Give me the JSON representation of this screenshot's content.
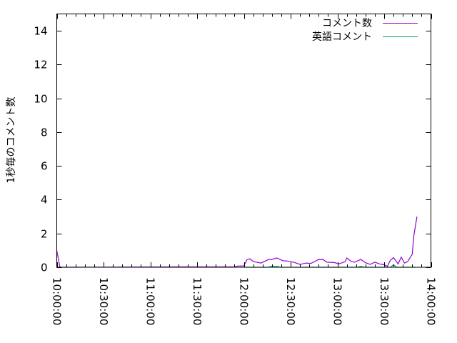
{
  "chart_data": {
    "type": "line",
    "title": "",
    "xlabel": "",
    "ylabel": "1秒毎のコメント数",
    "xlim": [
      "10:00:00",
      "14:00:00"
    ],
    "ylim": [
      0,
      15
    ],
    "x_ticks": [
      "10:00:00",
      "10:30:00",
      "11:00:00",
      "11:30:00",
      "12:00:00",
      "12:30:00",
      "13:00:00",
      "13:30:00",
      "14:00:00"
    ],
    "y_ticks": [
      "0",
      "2",
      "4",
      "6",
      "8",
      "10",
      "12",
      "14"
    ],
    "grid": false,
    "legend_position": "top-right",
    "series": [
      {
        "name": "コメント数",
        "color": "#9400d3",
        "points": [
          [
            "10:00",
            1.0
          ],
          [
            "10:02",
            0.0
          ],
          [
            "11:54",
            0.03
          ],
          [
            "11:56",
            0.07
          ],
          [
            "12:00",
            0.08
          ],
          [
            "12:02",
            0.45
          ],
          [
            "12:04",
            0.5
          ],
          [
            "12:06",
            0.34
          ],
          [
            "12:11",
            0.25
          ],
          [
            "12:16",
            0.46
          ],
          [
            "12:18",
            0.46
          ],
          [
            "12:21",
            0.55
          ],
          [
            "12:22",
            0.52
          ],
          [
            "12:25",
            0.39
          ],
          [
            "12:28",
            0.37
          ],
          [
            "12:32",
            0.3
          ],
          [
            "12:36",
            0.17
          ],
          [
            "12:40",
            0.25
          ],
          [
            "12:43",
            0.23
          ],
          [
            "12:48",
            0.46
          ],
          [
            "12:51",
            0.45
          ],
          [
            "12:53",
            0.3
          ],
          [
            "12:58",
            0.28
          ],
          [
            "13:01",
            0.2
          ],
          [
            "13:05",
            0.33
          ],
          [
            "13:06",
            0.55
          ],
          [
            "13:09",
            0.34
          ],
          [
            "13:11",
            0.3
          ],
          [
            "13:15",
            0.46
          ],
          [
            "13:18",
            0.27
          ],
          [
            "13:21",
            0.17
          ],
          [
            "13:24",
            0.3
          ],
          [
            "13:27",
            0.2
          ],
          [
            "13:30",
            0.15
          ],
          [
            "13:32",
            0.05
          ],
          [
            "13:34",
            0.42
          ],
          [
            "13:36",
            0.57
          ],
          [
            "13:39",
            0.2
          ],
          [
            "13:41",
            0.6
          ],
          [
            "13:43",
            0.25
          ],
          [
            "13:45",
            0.33
          ],
          [
            "13:48",
            0.77
          ],
          [
            "13:49",
            1.85
          ],
          [
            "13:51",
            3.0
          ]
        ]
      },
      {
        "name": "英語コメント",
        "color": "#009e73",
        "points": [
          [
            "12:00",
            0
          ],
          [
            "12:16",
            0
          ],
          [
            "12:17",
            0.05
          ],
          [
            "12:22",
            0.05
          ],
          [
            "12:23",
            0
          ],
          [
            "13:13",
            0
          ],
          [
            "13:15",
            0.05
          ],
          [
            "13:17",
            0
          ],
          [
            "13:34",
            0
          ],
          [
            "13:36",
            0.15
          ],
          [
            "13:38",
            0
          ],
          [
            "13:50",
            0
          ]
        ]
      }
    ]
  }
}
